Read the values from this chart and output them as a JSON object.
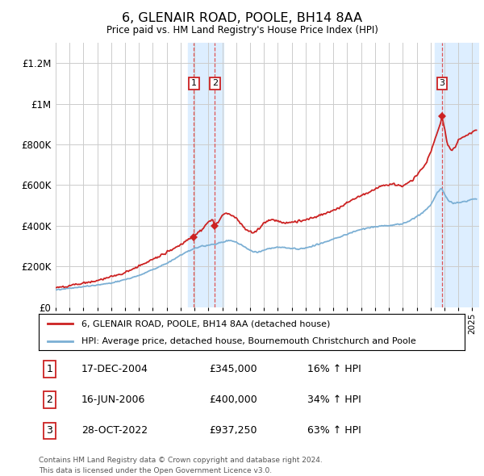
{
  "title": "6, GLENAIR ROAD, POOLE, BH14 8AA",
  "subtitle": "Price paid vs. HM Land Registry's House Price Index (HPI)",
  "legend_line1": "6, GLENAIR ROAD, POOLE, BH14 8AA (detached house)",
  "legend_line2": "HPI: Average price, detached house, Bournemouth Christchurch and Poole",
  "footer1": "Contains HM Land Registry data © Crown copyright and database right 2024.",
  "footer2": "This data is licensed under the Open Government Licence v3.0.",
  "transactions": [
    {
      "num": 1,
      "date": "17-DEC-2004",
      "price": "£345,000",
      "pct": "16% ↑ HPI",
      "year_x": 2004.96
    },
    {
      "num": 2,
      "date": "16-JUN-2006",
      "price": "£400,000",
      "pct": "34% ↑ HPI",
      "year_x": 2006.46
    },
    {
      "num": 3,
      "date": "28-OCT-2022",
      "price": "£937,250",
      "pct": "63% ↑ HPI",
      "year_x": 2022.83
    }
  ],
  "hpi_color": "#7bafd4",
  "price_color": "#cc2222",
  "marker_color": "#cc2222",
  "vline_color": "#dd4444",
  "shade_color": "#ddeeff",
  "grid_color": "#cccccc",
  "bg_color": "#ffffff",
  "ylim": [
    0,
    1300000
  ],
  "xlim_start": 1995,
  "xlim_end": 2025.5,
  "yticks": [
    0,
    200000,
    400000,
    600000,
    800000,
    1000000,
    1200000
  ],
  "ytick_labels": [
    "£0",
    "£200K",
    "£400K",
    "£600K",
    "£800K",
    "£1M",
    "£1.2M"
  ],
  "xtick_years": [
    1995,
    1996,
    1997,
    1998,
    1999,
    2000,
    2001,
    2002,
    2003,
    2004,
    2005,
    2006,
    2007,
    2008,
    2009,
    2010,
    2011,
    2012,
    2013,
    2014,
    2015,
    2016,
    2017,
    2018,
    2019,
    2020,
    2021,
    2022,
    2023,
    2024,
    2025
  ],
  "shade_bands": [
    {
      "xmin": 2004.5,
      "xmax": 2007.1
    },
    {
      "xmin": 2022.3,
      "xmax": 2025.5
    }
  ],
  "marker_prices": [
    345000,
    400000,
    937250
  ]
}
